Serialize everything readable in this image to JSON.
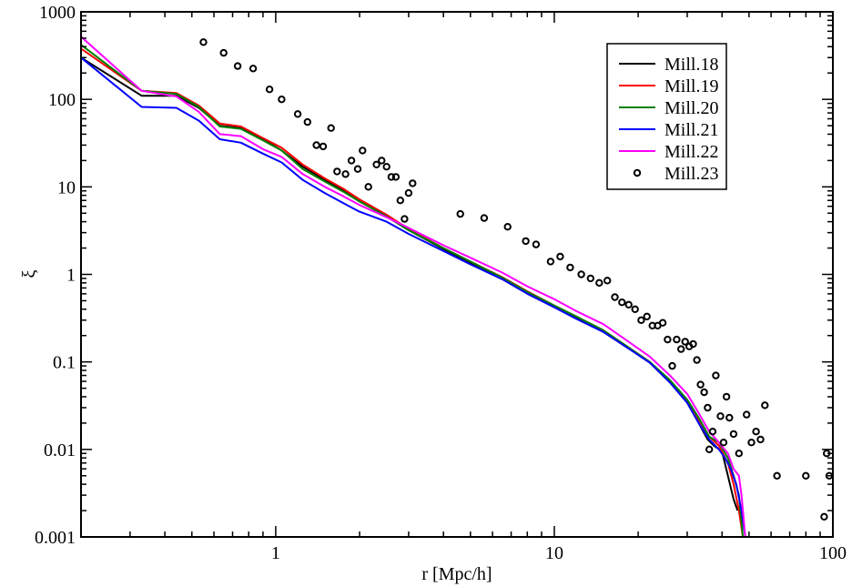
{
  "chart_data": {
    "type": "line",
    "xlabel": "r [Mpc/h]",
    "ylabel": "ξ",
    "xscale": "log",
    "yscale": "log",
    "xlim": [
      0.2,
      100
    ],
    "ylim": [
      0.001,
      1000
    ],
    "x_ticks": [
      {
        "value": 1,
        "label": "1"
      },
      {
        "value": 10,
        "label": "10"
      },
      {
        "value": 100,
        "label": "100"
      }
    ],
    "y_ticks": [
      {
        "value": 0.001,
        "label": "0.001"
      },
      {
        "value": 0.01,
        "label": "0.01"
      },
      {
        "value": 0.1,
        "label": "0.1"
      },
      {
        "value": 1,
        "label": "1"
      },
      {
        "value": 10,
        "label": "10"
      },
      {
        "value": 100,
        "label": "100"
      },
      {
        "value": 1000,
        "label": "1000"
      }
    ],
    "grid": false,
    "legend_position": "top-right",
    "series": [
      {
        "name": "Mill.18",
        "color": "#000000",
        "style": "line",
        "points": [
          [
            0.2,
            300
          ],
          [
            0.33,
            110
          ],
          [
            0.44,
            110
          ],
          [
            0.53,
            80
          ],
          [
            0.63,
            50
          ],
          [
            0.75,
            47
          ],
          [
            0.9,
            35
          ],
          [
            1.05,
            26
          ],
          [
            1.25,
            17
          ],
          [
            1.5,
            12
          ],
          [
            1.75,
            9
          ],
          [
            2.0,
            6.8
          ],
          [
            2.5,
            4.6
          ],
          [
            3.0,
            3.2
          ],
          [
            4.0,
            1.95
          ],
          [
            5.0,
            1.35
          ],
          [
            6.5,
            0.9
          ],
          [
            8.0,
            0.62
          ],
          [
            10.0,
            0.43
          ],
          [
            12.0,
            0.32
          ],
          [
            15.0,
            0.22
          ],
          [
            18.0,
            0.15
          ],
          [
            22.0,
            0.1
          ],
          [
            26.0,
            0.06
          ],
          [
            30.0,
            0.035
          ],
          [
            33.0,
            0.02
          ],
          [
            35.5,
            0.013
          ],
          [
            37.5,
            0.011
          ],
          [
            40.0,
            0.0095
          ],
          [
            42.0,
            0.005
          ],
          [
            44.0,
            0.0027
          ],
          [
            45.5,
            0.002
          ]
        ]
      },
      {
        "name": "Mill.19",
        "color": "#ff0000",
        "style": "line",
        "points": [
          [
            0.2,
            380
          ],
          [
            0.33,
            125
          ],
          [
            0.44,
            118
          ],
          [
            0.53,
            85
          ],
          [
            0.63,
            53
          ],
          [
            0.75,
            49
          ],
          [
            0.9,
            36
          ],
          [
            1.05,
            28
          ],
          [
            1.25,
            18
          ],
          [
            1.5,
            12.5
          ],
          [
            1.75,
            9.5
          ],
          [
            2.0,
            7.2
          ],
          [
            2.5,
            4.8
          ],
          [
            3.0,
            3.3
          ],
          [
            4.0,
            2.0
          ],
          [
            5.0,
            1.4
          ],
          [
            6.5,
            0.93
          ],
          [
            8.0,
            0.64
          ],
          [
            10.0,
            0.44
          ],
          [
            12.0,
            0.33
          ],
          [
            15.0,
            0.23
          ],
          [
            18.0,
            0.155
          ],
          [
            22.0,
            0.1
          ],
          [
            26.0,
            0.061
          ],
          [
            30.0,
            0.036
          ],
          [
            33.0,
            0.022
          ],
          [
            36.0,
            0.014
          ],
          [
            39.0,
            0.011
          ],
          [
            42.0,
            0.007
          ],
          [
            44.0,
            0.004
          ],
          [
            46.0,
            0.002
          ],
          [
            47.5,
            0.001
          ]
        ]
      },
      {
        "name": "Mill.20",
        "color": "#008000",
        "style": "line",
        "points": [
          [
            0.2,
            420
          ],
          [
            0.33,
            125
          ],
          [
            0.44,
            115
          ],
          [
            0.53,
            82
          ],
          [
            0.63,
            49
          ],
          [
            0.75,
            46
          ],
          [
            0.9,
            34
          ],
          [
            1.05,
            26
          ],
          [
            1.25,
            16
          ],
          [
            1.5,
            11.5
          ],
          [
            1.75,
            8.8
          ],
          [
            2.0,
            6.8
          ],
          [
            2.5,
            4.6
          ],
          [
            3.0,
            3.2
          ],
          [
            4.0,
            2.0
          ],
          [
            5.0,
            1.4
          ],
          [
            6.5,
            0.92
          ],
          [
            8.0,
            0.63
          ],
          [
            10.0,
            0.44
          ],
          [
            12.0,
            0.33
          ],
          [
            15.0,
            0.23
          ],
          [
            18.0,
            0.155
          ],
          [
            22.0,
            0.1
          ],
          [
            26.0,
            0.062
          ],
          [
            30.0,
            0.037
          ],
          [
            33.0,
            0.023
          ],
          [
            36.0,
            0.014
          ],
          [
            39.0,
            0.012
          ],
          [
            42.0,
            0.008
          ],
          [
            44.0,
            0.005
          ],
          [
            46.0,
            0.003
          ],
          [
            47.5,
            0.001
          ]
        ]
      },
      {
        "name": "Mill.21",
        "color": "#0000ff",
        "style": "line",
        "points": [
          [
            0.2,
            300
          ],
          [
            0.33,
            82
          ],
          [
            0.44,
            80
          ],
          [
            0.53,
            57
          ],
          [
            0.63,
            35
          ],
          [
            0.75,
            32
          ],
          [
            0.9,
            24
          ],
          [
            1.05,
            19
          ],
          [
            1.25,
            12
          ],
          [
            1.5,
            8.5
          ],
          [
            1.75,
            6.5
          ],
          [
            2.0,
            5.2
          ],
          [
            2.5,
            4.0
          ],
          [
            3.0,
            2.9
          ],
          [
            4.0,
            1.85
          ],
          [
            5.0,
            1.3
          ],
          [
            6.5,
            0.88
          ],
          [
            8.0,
            0.6
          ],
          [
            10.0,
            0.42
          ],
          [
            12.0,
            0.31
          ],
          [
            15.0,
            0.22
          ],
          [
            18.0,
            0.15
          ],
          [
            22.0,
            0.098
          ],
          [
            26.0,
            0.058
          ],
          [
            30.0,
            0.034
          ],
          [
            33.0,
            0.02
          ],
          [
            36.0,
            0.013
          ],
          [
            39.0,
            0.01
          ],
          [
            41.0,
            0.008
          ],
          [
            43.0,
            0.006
          ],
          [
            45.0,
            0.004
          ],
          [
            47.0,
            0.002
          ],
          [
            48.5,
            0.001
          ]
        ]
      },
      {
        "name": "Mill.22",
        "color": "#ff00ff",
        "style": "line",
        "points": [
          [
            0.2,
            520
          ],
          [
            0.33,
            125
          ],
          [
            0.44,
            108
          ],
          [
            0.53,
            72
          ],
          [
            0.63,
            40
          ],
          [
            0.75,
            38
          ],
          [
            0.9,
            27
          ],
          [
            1.05,
            22
          ],
          [
            1.25,
            14
          ],
          [
            1.5,
            10
          ],
          [
            1.75,
            7.8
          ],
          [
            2.0,
            6.2
          ],
          [
            2.5,
            4.5
          ],
          [
            3.0,
            3.4
          ],
          [
            4.0,
            2.15
          ],
          [
            5.0,
            1.55
          ],
          [
            6.5,
            1.05
          ],
          [
            8.0,
            0.73
          ],
          [
            10.0,
            0.52
          ],
          [
            12.0,
            0.38
          ],
          [
            15.0,
            0.27
          ],
          [
            18.0,
            0.18
          ],
          [
            22.0,
            0.115
          ],
          [
            26.0,
            0.07
          ],
          [
            30.0,
            0.043
          ],
          [
            33.0,
            0.026
          ],
          [
            36.0,
            0.016
          ],
          [
            39.0,
            0.012
          ],
          [
            42.0,
            0.009
          ],
          [
            44.0,
            0.006
          ],
          [
            46.0,
            0.005
          ],
          [
            47.0,
            0.003
          ],
          [
            48.5,
            0.001
          ]
        ]
      },
      {
        "name": "Mill.23",
        "color": "#000000",
        "style": "markers",
        "points": [
          [
            0.55,
            450
          ],
          [
            0.65,
            340
          ],
          [
            0.73,
            240
          ],
          [
            0.83,
            225
          ],
          [
            0.95,
            130
          ],
          [
            1.05,
            100
          ],
          [
            1.2,
            68
          ],
          [
            1.3,
            55
          ],
          [
            1.4,
            30
          ],
          [
            1.48,
            29
          ],
          [
            1.58,
            47
          ],
          [
            1.66,
            15
          ],
          [
            1.78,
            14
          ],
          [
            1.87,
            20
          ],
          [
            1.97,
            16
          ],
          [
            2.05,
            26
          ],
          [
            2.15,
            10
          ],
          [
            2.3,
            18
          ],
          [
            2.4,
            20
          ],
          [
            2.5,
            17
          ],
          [
            2.6,
            13
          ],
          [
            2.7,
            13
          ],
          [
            2.8,
            7
          ],
          [
            2.9,
            4.3
          ],
          [
            3.0,
            8.5
          ],
          [
            3.1,
            11
          ],
          [
            4.6,
            4.9
          ],
          [
            5.6,
            4.4
          ],
          [
            6.8,
            3.5
          ],
          [
            7.9,
            2.4
          ],
          [
            8.6,
            2.2
          ],
          [
            9.7,
            1.4
          ],
          [
            10.5,
            1.6
          ],
          [
            11.4,
            1.2
          ],
          [
            12.5,
            1.0
          ],
          [
            13.5,
            0.9
          ],
          [
            14.5,
            0.8
          ],
          [
            15.5,
            0.85
          ],
          [
            16.5,
            0.55
          ],
          [
            17.5,
            0.48
          ],
          [
            18.5,
            0.45
          ],
          [
            19.5,
            0.4
          ],
          [
            20.5,
            0.3
          ],
          [
            21.5,
            0.33
          ],
          [
            22.5,
            0.26
          ],
          [
            23.5,
            0.26
          ],
          [
            24.5,
            0.28
          ],
          [
            25.5,
            0.18
          ],
          [
            26.5,
            0.09
          ],
          [
            27.5,
            0.18
          ],
          [
            28.5,
            0.14
          ],
          [
            29.5,
            0.17
          ],
          [
            30.5,
            0.15
          ],
          [
            31.5,
            0.16
          ],
          [
            32.5,
            0.105
          ],
          [
            33.5,
            0.055
          ],
          [
            34.5,
            0.045
          ],
          [
            35.5,
            0.03
          ],
          [
            36.0,
            0.01
          ],
          [
            37.0,
            0.016
          ],
          [
            38.0,
            0.07
          ],
          [
            39.5,
            0.024
          ],
          [
            40.5,
            0.012
          ],
          [
            41.5,
            0.04
          ],
          [
            42.5,
            0.023
          ],
          [
            44.0,
            0.015
          ],
          [
            46.0,
            0.009
          ],
          [
            49.0,
            0.025
          ],
          [
            51.0,
            0.012
          ],
          [
            53.0,
            0.016
          ],
          [
            55.0,
            0.013
          ],
          [
            57.0,
            0.032
          ],
          [
            63.0,
            0.005
          ],
          [
            80.0,
            0.005
          ],
          [
            93.0,
            0.0017
          ],
          [
            95.0,
            0.009
          ],
          [
            97.0,
            0.005
          ]
        ]
      }
    ]
  }
}
